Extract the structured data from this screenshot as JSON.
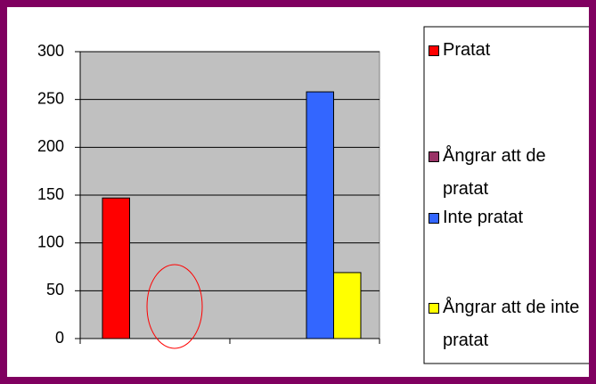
{
  "chart_data": {
    "type": "bar",
    "categories": [
      null,
      null
    ],
    "series": [
      {
        "name": "Pratat",
        "color": "#ff0000",
        "values": [
          147,
          0
        ]
      },
      {
        "name": "Ångrar att de pratat",
        "color": "#993366",
        "values": [
          0,
          0
        ]
      },
      {
        "name": "Inte pratat",
        "color": "#3366ff",
        "values": [
          0,
          258
        ]
      },
      {
        "name": "Ångrar att de inte pratat",
        "color": "#ffff00",
        "values": [
          0,
          69
        ]
      }
    ],
    "ylim": [
      0,
      300
    ],
    "yticks": [
      0,
      50,
      100,
      150,
      200,
      250,
      300
    ],
    "grid": true,
    "plot_color": "#c0c0c0",
    "legend": "right"
  }
}
